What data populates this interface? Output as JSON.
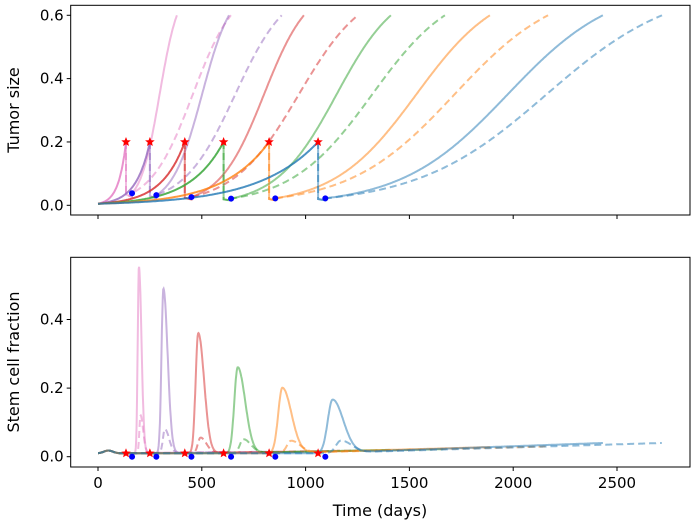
{
  "chart_data": [
    {
      "type": "line",
      "ylabel": "Tumor size",
      "xlabel": "",
      "xlim": [
        -120,
        2850
      ],
      "ylim": [
        -0.03,
        0.63
      ],
      "xticks": [
        0,
        500,
        1000,
        1500,
        2000,
        2500
      ],
      "yticks": [
        "0.0",
        "0.2",
        "0.4",
        "0.6"
      ],
      "ytick_values": [
        0,
        0.2,
        0.4,
        0.6
      ],
      "grid": false,
      "markers": {
        "star_color": "#ff0000",
        "dot_color": "#0000ff"
      },
      "series": [
        {
          "color": "#e377c2",
          "start": [
            0,
            0.005
          ],
          "star": [
            135,
            0.2
          ],
          "dot": [
            164,
            0.038
          ],
          "solid_end": [
            380,
            0.6
          ],
          "dashed_end": [
            640,
            0.6
          ]
        },
        {
          "color": "#9467bd",
          "start": [
            0,
            0.005
          ],
          "star": [
            250,
            0.2
          ],
          "dot": [
            281,
            0.032
          ],
          "solid_end": [
            631,
            0.6
          ],
          "dashed_end": [
            885,
            0.6
          ]
        },
        {
          "color": "#d62728",
          "start": [
            0,
            0.005
          ],
          "star": [
            418,
            0.2
          ],
          "dot": [
            450,
            0.026
          ],
          "solid_end": [
            992,
            0.6
          ],
          "dashed_end": [
            1252,
            0.6
          ]
        },
        {
          "color": "#2ca02c",
          "start": [
            0,
            0.005
          ],
          "star": [
            605,
            0.2
          ],
          "dot": [
            641,
            0.021
          ],
          "solid_end": [
            1411,
            0.6
          ],
          "dashed_end": [
            1671,
            0.6
          ]
        },
        {
          "color": "#ff7f0e",
          "start": [
            0,
            0.005
          ],
          "star": [
            824,
            0.2
          ],
          "dot": [
            854,
            0.022
          ],
          "solid_end": [
            1888,
            0.6
          ],
          "dashed_end": [
            2168,
            0.6
          ]
        },
        {
          "color": "#1f77b4",
          "start": [
            0,
            0.005
          ],
          "star": [
            1060,
            0.2
          ],
          "dot": [
            1095,
            0.022
          ],
          "solid_end": [
            2432,
            0.6
          ],
          "dashed_end": [
            2717,
            0.6
          ]
        }
      ]
    },
    {
      "type": "line",
      "ylabel": "Stem cell fraction",
      "xlabel": "Time (days)",
      "xlim": [
        -120,
        2850
      ],
      "ylim": [
        -0.03,
        0.58
      ],
      "xticks": [
        0,
        500,
        1000,
        1500,
        2000,
        2500
      ],
      "xtick_labels": [
        "0",
        "500",
        "1000",
        "1500",
        "2000",
        "2500"
      ],
      "yticks": [
        "0.0",
        "0.2",
        "0.4"
      ],
      "ytick_values": [
        0,
        0.2,
        0.4
      ],
      "grid": false,
      "baseline": 0.01,
      "series": [
        {
          "color": "#e377c2",
          "solid_peak": [
            197,
            0.555
          ],
          "dashed_peak": [
            205,
            0.12
          ],
          "solid_end": [
            380,
            0.012
          ],
          "dashed_end": [
            640,
            0.014
          ]
        },
        {
          "color": "#9467bd",
          "solid_peak": [
            315,
            0.49
          ],
          "dashed_peak": [
            322,
            0.08
          ],
          "solid_end": [
            631,
            0.013
          ],
          "dashed_end": [
            885,
            0.015
          ]
        },
        {
          "color": "#d62728",
          "solid_peak": [
            483,
            0.36
          ],
          "dashed_peak": [
            494,
            0.055
          ],
          "solid_end": [
            992,
            0.015
          ],
          "dashed_end": [
            1252,
            0.018
          ]
        },
        {
          "color": "#2ca02c",
          "solid_peak": [
            673,
            0.26
          ],
          "dashed_peak": [
            700,
            0.05
          ],
          "solid_end": [
            1411,
            0.02
          ],
          "dashed_end": [
            1671,
            0.022
          ]
        },
        {
          "color": "#ff7f0e",
          "solid_peak": [
            888,
            0.2
          ],
          "dashed_peak": [
            930,
            0.045
          ],
          "solid_end": [
            1888,
            0.028
          ],
          "dashed_end": [
            2168,
            0.03
          ]
        },
        {
          "color": "#1f77b4",
          "solid_peak": [
            1130,
            0.165
          ],
          "dashed_peak": [
            1170,
            0.045
          ],
          "solid_end": [
            2432,
            0.04
          ],
          "dashed_end": [
            2717,
            0.04
          ]
        }
      ]
    }
  ]
}
